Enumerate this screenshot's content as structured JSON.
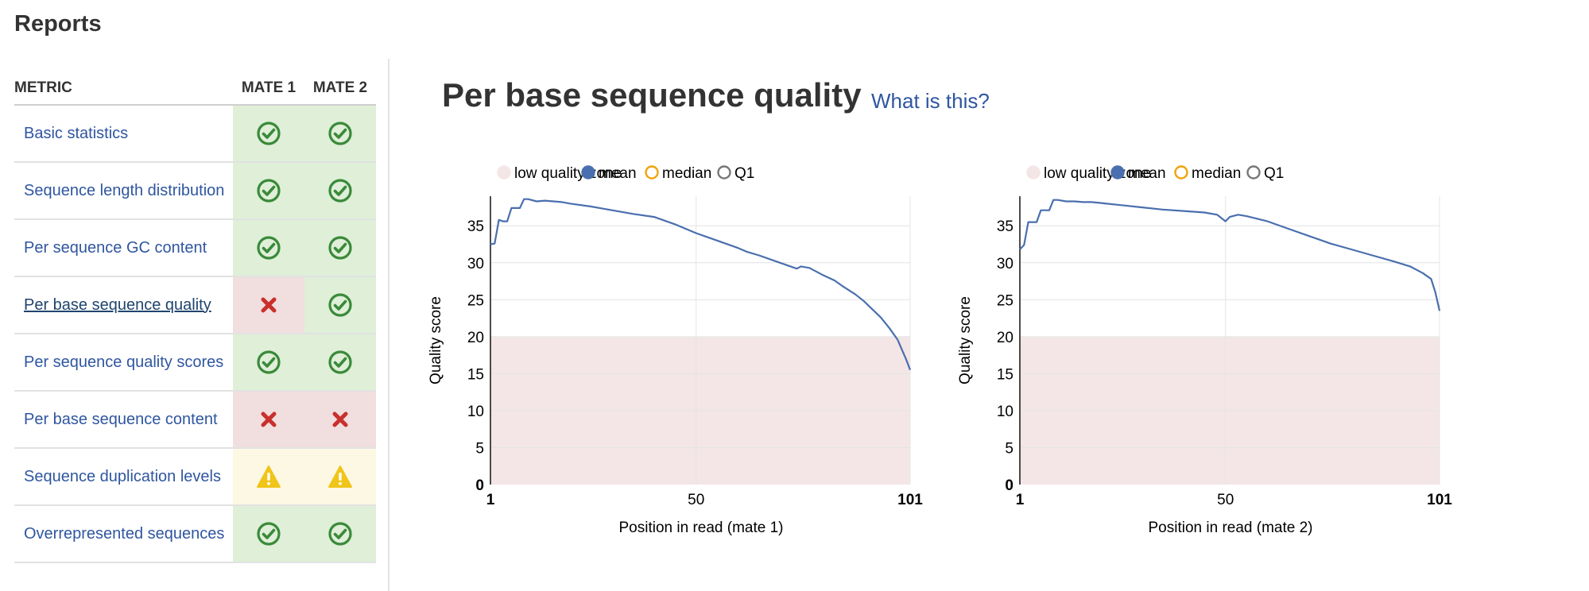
{
  "header": {
    "title": "Reports"
  },
  "table": {
    "headers": {
      "metric": "METRIC",
      "mate1": "MATE 1",
      "mate2": "MATE 2"
    },
    "rows": [
      {
        "label": "Basic statistics",
        "mate1": "pass",
        "mate2": "pass"
      },
      {
        "label": "Sequence length distribution",
        "mate1": "pass",
        "mate2": "pass"
      },
      {
        "label": "Per sequence GC content",
        "mate1": "pass",
        "mate2": "pass"
      },
      {
        "label": "Per base sequence quality",
        "mate1": "fail",
        "mate2": "pass",
        "active": true
      },
      {
        "label": "Per sequence quality scores",
        "mate1": "pass",
        "mate2": "pass"
      },
      {
        "label": "Per base sequence content",
        "mate1": "fail",
        "mate2": "fail"
      },
      {
        "label": "Sequence duplication levels",
        "mate1": "warn",
        "mate2": "warn"
      },
      {
        "label": "Overrepresented sequences",
        "mate1": "pass",
        "mate2": "pass"
      }
    ]
  },
  "status_icons": {
    "pass": "check-circle-icon",
    "fail": "cross-icon",
    "warn": "warning-triangle-icon"
  },
  "section": {
    "title": "Per base sequence quality",
    "help_link": "What is this?"
  },
  "colors": {
    "link": "#2f56a0",
    "pass_bg": "#dfefd8",
    "fail_bg": "#f1dede",
    "warn_bg": "#fcf8e3",
    "pass_icon": "#3a8a3a",
    "fail_icon": "#c9302c",
    "warn_icon": "#f0c419",
    "mean_line": "#4a6fae",
    "median": "#f0a30a",
    "q1": "#777777",
    "low_zone": "#f4e6e6"
  },
  "chart_data": [
    {
      "type": "line",
      "legend": [
        "low quality zone",
        "mean",
        "median",
        "Q1"
      ],
      "legend_position": "top",
      "xlabel": "Position in read (mate 1)",
      "ylabel": "Quality score",
      "xlim": [
        1,
        101
      ],
      "ylim": [
        0,
        39
      ],
      "xticks": [
        "1",
        "50",
        "101"
      ],
      "yticks": [
        0,
        5,
        10,
        15,
        20,
        25,
        30,
        35
      ],
      "low_quality_zone": [
        0,
        20
      ],
      "grid": true,
      "series": [
        {
          "name": "mean",
          "x": [
            1,
            2,
            3,
            4,
            5,
            6,
            7,
            8,
            9,
            10,
            12,
            14,
            16,
            18,
            20,
            25,
            30,
            35,
            40,
            45,
            50,
            55,
            60,
            62,
            65,
            70,
            74,
            75,
            77,
            80,
            83,
            85,
            88,
            90,
            92,
            94,
            96,
            98,
            99,
            100,
            101
          ],
          "y": [
            32.5,
            32.6,
            35.8,
            35.6,
            35.6,
            37.4,
            37.4,
            37.4,
            38.6,
            38.6,
            38.3,
            38.4,
            38.3,
            38.2,
            38.0,
            37.6,
            37.1,
            36.6,
            36.2,
            35.2,
            34.0,
            33.0,
            32.0,
            31.5,
            31.0,
            30.0,
            29.2,
            29.5,
            29.3,
            28.4,
            27.6,
            26.8,
            25.7,
            24.8,
            23.7,
            22.6,
            21.2,
            19.6,
            18.3,
            17.0,
            15.5
          ]
        }
      ]
    },
    {
      "type": "line",
      "legend": [
        "low quality zone",
        "mean",
        "median",
        "Q1"
      ],
      "legend_position": "top",
      "xlabel": "Position in read (mate 2)",
      "ylabel": "Quality score",
      "xlim": [
        1,
        101
      ],
      "ylim": [
        0,
        39
      ],
      "xticks": [
        "1",
        "50",
        "101"
      ],
      "yticks": [
        0,
        5,
        10,
        15,
        20,
        25,
        30,
        35
      ],
      "low_quality_zone": [
        0,
        20
      ],
      "grid": true,
      "series": [
        {
          "name": "mean",
          "x": [
            1,
            2,
            3,
            4,
            5,
            6,
            7,
            8,
            9,
            10,
            12,
            14,
            16,
            18,
            20,
            25,
            30,
            35,
            40,
            45,
            48,
            50,
            51,
            53,
            55,
            60,
            65,
            70,
            75,
            80,
            85,
            90,
            94,
            97,
            99,
            100,
            101
          ],
          "y": [
            31.8,
            32.4,
            35.5,
            35.5,
            35.5,
            37.1,
            37.1,
            37.1,
            38.5,
            38.5,
            38.3,
            38.3,
            38.2,
            38.2,
            38.1,
            37.8,
            37.5,
            37.2,
            37.0,
            36.8,
            36.5,
            35.6,
            36.2,
            36.5,
            36.3,
            35.6,
            34.6,
            33.6,
            32.6,
            31.8,
            31.0,
            30.2,
            29.5,
            28.6,
            27.8,
            26.0,
            23.5
          ]
        }
      ]
    }
  ]
}
